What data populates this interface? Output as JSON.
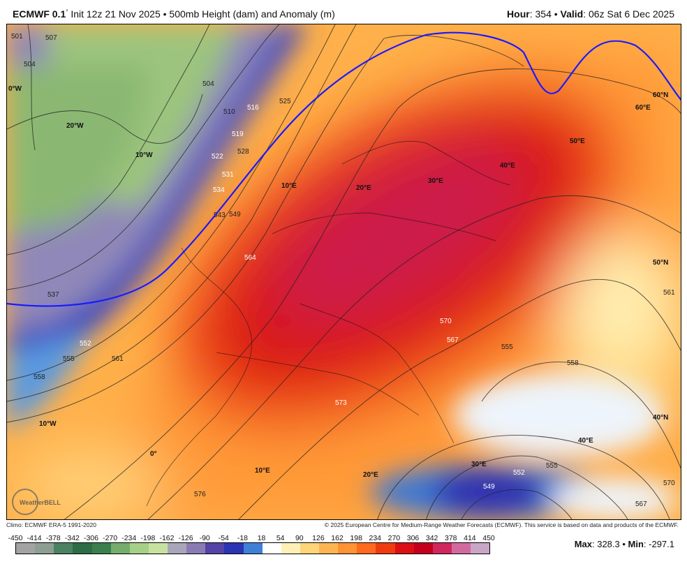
{
  "header": {
    "model": "ECMWF 0.1",
    "degree": "°",
    "init": " Init 12z 21 Nov 2025 • 500mb Height (dam) and Anomaly (m)",
    "hour_label": "Hour",
    "hour_value": ": 354 • ",
    "valid_label": "Valid",
    "valid_value": ": 06z Sat 6 Dec 2025"
  },
  "map": {
    "region": "Europe",
    "logo_text": "WeatherBELL",
    "longitude_labels": [
      "0°W",
      "20°W",
      "10°W",
      "10°E",
      "20°E",
      "30°E",
      "40°E",
      "50°E",
      "60°E",
      "10°W",
      "0°",
      "10°E",
      "20°E",
      "30°E",
      "40°E"
    ],
    "latitude_labels": [
      "60°N",
      "50°N",
      "40°N"
    ],
    "contour_labels": [
      "501",
      "507",
      "504",
      "504",
      "510",
      "516",
      "525",
      "519",
      "522",
      "528",
      "534",
      "531",
      "543",
      "549",
      "537",
      "552",
      "555",
      "558",
      "561",
      "564",
      "570",
      "567",
      "573",
      "576",
      "555",
      "558",
      "561",
      "552",
      "555",
      "549",
      "567",
      "570"
    ],
    "highlight_contour_color": "#1a1aff"
  },
  "footer": {
    "climo": "Climo: ECMWF ERA-5 1991-2020",
    "copyright": "© 2025 European Centre for Medium-Range Weather Forecasts (ECMWF). This service is based on data and products of the ECMWF.",
    "max_label": "Max",
    "max_value": ": 328.3 • ",
    "min_label": "Min",
    "min_value": ": -297.1"
  },
  "colorbar": {
    "ticks": [
      "-450",
      "-414",
      "-378",
      "-342",
      "-306",
      "-270",
      "-234",
      "-198",
      "-162",
      "-126",
      "-90",
      "-54",
      "-18",
      "18",
      "54",
      "90",
      "126",
      "162",
      "198",
      "234",
      "270",
      "306",
      "342",
      "378",
      "414",
      "450"
    ],
    "colors": [
      "#a3a3a3",
      "#8e9e92",
      "#4b8262",
      "#2c6d46",
      "#3a7f4e",
      "#74ad6c",
      "#a6cf88",
      "#c7e2a0",
      "#a9a6b9",
      "#8a7bb2",
      "#5544a6",
      "#2a34b4",
      "#3f7fd6",
      "#ffffff",
      "#fff0b5",
      "#ffd47a",
      "#ffb452",
      "#ff9233",
      "#ff6a1e",
      "#ee3c10",
      "#dc1014",
      "#c4001c",
      "#d0285e",
      "#d26aa0",
      "#c9a6c6"
    ]
  }
}
